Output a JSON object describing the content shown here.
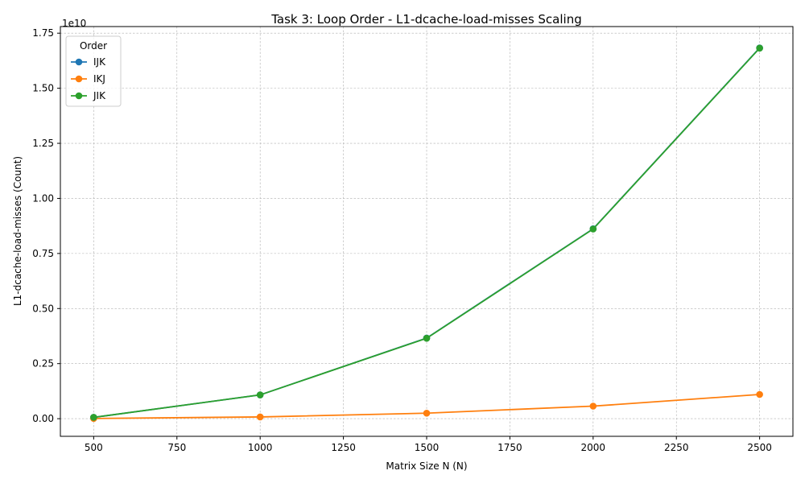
{
  "chart_data": {
    "type": "line",
    "title": "Task 3: Loop Order - L1-dcache-load-misses Scaling",
    "xlabel": "Matrix Size N (N)",
    "ylabel": "L1-dcache-load-misses (Count)",
    "y_offset_label": "1e10",
    "x": [
      500,
      1000,
      1500,
      2000,
      2500
    ],
    "xlim": [
      400,
      2600
    ],
    "ylim": [
      -0.08,
      1.78
    ],
    "y_unit_multiplier": 10000000000.0,
    "xticks": [
      500,
      750,
      1000,
      1250,
      1500,
      1750,
      2000,
      2250,
      2500
    ],
    "xtick_labels": [
      "500",
      "750",
      "1000",
      "1250",
      "1500",
      "1750",
      "2000",
      "2250",
      "2500"
    ],
    "yticks": [
      0.0,
      0.25,
      0.5,
      0.75,
      1.0,
      1.25,
      1.5,
      1.75
    ],
    "ytick_labels": [
      "0.00",
      "0.25",
      "0.50",
      "0.75",
      "1.00",
      "1.25",
      "1.50",
      "1.75"
    ],
    "grid": true,
    "legend": {
      "title": "Order",
      "placement": "top-left"
    },
    "series": [
      {
        "name": "IJK",
        "color": "#1f77b4",
        "values": [
          0.006,
          0.108,
          0.366,
          0.862,
          1.683
        ]
      },
      {
        "name": "IKJ",
        "color": "#ff7f0e",
        "values": [
          0.001,
          0.008,
          0.025,
          0.057,
          0.11
        ]
      },
      {
        "name": "JIK",
        "color": "#2ca02c",
        "values": [
          0.006,
          0.108,
          0.365,
          0.861,
          1.682
        ]
      }
    ]
  }
}
